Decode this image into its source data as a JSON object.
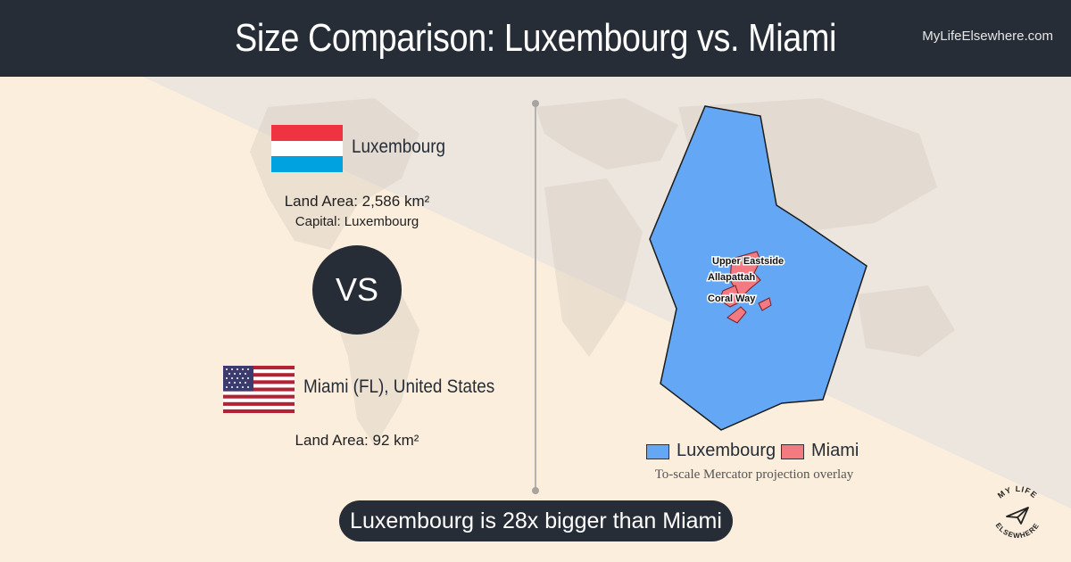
{
  "header": {
    "title": "Size Comparison: Luxembourg vs. Miami",
    "site": "MyLifeElsewhere.com"
  },
  "left": {
    "country1": {
      "name": "Luxembourg",
      "land_area": "Land Area: 2,586 km²",
      "capital": "Capital: Luxembourg",
      "flag_colors": [
        "#ef3340",
        "#ffffff",
        "#00a3e0"
      ]
    },
    "vs": "VS",
    "country2": {
      "name": "Miami (FL), United States",
      "land_area": "Land Area: 92 km²",
      "flag_colors": [
        "#b22234",
        "#ffffff",
        "#3c3b6e"
      ]
    }
  },
  "map": {
    "labels": [
      "Upper Eastside",
      "Allapattah",
      "Coral Way"
    ],
    "legend": [
      {
        "label": "Luxembourg",
        "color": "#64a7f5"
      },
      {
        "label": "Miami",
        "color": "#f27a80"
      }
    ],
    "caption": "To-scale Mercator projection overlay"
  },
  "summary": "Luxembourg is 28x bigger than Miami",
  "logo": {
    "text_top": "MY LIFE",
    "text_bottom": "ELSEWHERE",
    "icon": "paper-plane-icon"
  }
}
